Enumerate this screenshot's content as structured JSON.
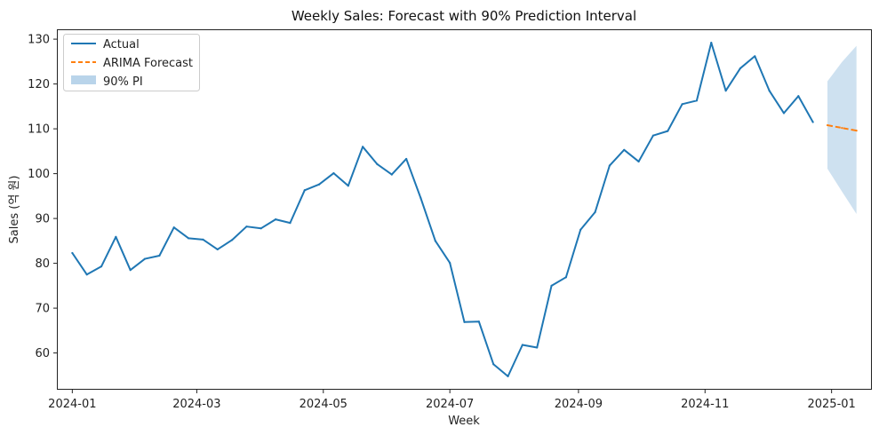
{
  "chart_data": {
    "type": "line",
    "title": "Weekly Sales: Forecast with 90% Prediction Interval",
    "xlabel": "Week",
    "ylabel": "Sales (억 원)",
    "x_range": [
      "2023-12-25",
      "2025-01-20"
    ],
    "ylim": [
      52,
      132
    ],
    "x_ticks": [
      "2024-01",
      "2024-03",
      "2024-05",
      "2024-07",
      "2024-09",
      "2024-11",
      "2025-01"
    ],
    "x_tick_dates": [
      "2024-01-01",
      "2024-03-01",
      "2024-05-01",
      "2024-07-01",
      "2024-09-01",
      "2024-11-01",
      "2025-01-01"
    ],
    "y_ticks": [
      60,
      70,
      80,
      90,
      100,
      110,
      120,
      130
    ],
    "grid": false,
    "legend_position": "top-left",
    "legend": [
      {
        "label": "Actual",
        "style": "line",
        "color": "#1f77b4"
      },
      {
        "label": "ARIMA Forecast",
        "style": "dashed",
        "color": "#ff7f0e"
      },
      {
        "label": "90% PI",
        "style": "band",
        "color": "#b9d4ea"
      }
    ],
    "series": [
      {
        "name": "Actual",
        "color": "#1f77b4",
        "x": [
          "2024-01-01",
          "2024-01-08",
          "2024-01-15",
          "2024-01-22",
          "2024-01-29",
          "2024-02-05",
          "2024-02-12",
          "2024-02-19",
          "2024-02-26",
          "2024-03-04",
          "2024-03-11",
          "2024-03-18",
          "2024-03-25",
          "2024-04-01",
          "2024-04-08",
          "2024-04-15",
          "2024-04-22",
          "2024-04-29",
          "2024-05-06",
          "2024-05-13",
          "2024-05-20",
          "2024-05-27",
          "2024-06-03",
          "2024-06-10",
          "2024-06-17",
          "2024-06-24",
          "2024-07-01",
          "2024-07-08",
          "2024-07-15",
          "2024-07-22",
          "2024-07-29",
          "2024-08-05",
          "2024-08-12",
          "2024-08-19",
          "2024-08-26",
          "2024-09-02",
          "2024-09-09",
          "2024-09-16",
          "2024-09-23",
          "2024-09-30",
          "2024-10-07",
          "2024-10-14",
          "2024-10-21",
          "2024-10-28",
          "2024-11-04",
          "2024-11-11",
          "2024-11-18",
          "2024-11-25",
          "2024-12-02",
          "2024-12-09",
          "2024-12-16",
          "2024-12-23"
        ],
        "values": [
          82.3,
          77.5,
          79.3,
          85.9,
          78.5,
          81.0,
          81.7,
          88.0,
          85.6,
          85.3,
          83.1,
          85.2,
          88.2,
          87.8,
          89.8,
          89.0,
          96.3,
          97.6,
          100.1,
          97.3,
          106.0,
          102.1,
          99.8,
          103.3,
          94.5,
          85.0,
          80.1,
          66.9,
          67.0,
          57.5,
          54.8,
          61.8,
          61.2,
          75.0,
          76.9,
          87.5,
          91.4,
          101.8,
          105.3,
          102.7,
          108.5,
          109.5,
          115.5,
          116.3,
          129.2,
          118.5,
          123.5,
          126.2,
          118.5,
          113.5,
          117.3,
          111.5
        ]
      },
      {
        "name": "ARIMA Forecast",
        "color": "#ff7f0e",
        "x": [
          "2024-12-30",
          "2025-01-06",
          "2025-01-13"
        ],
        "values": [
          110.8,
          110.2,
          109.6
        ]
      },
      {
        "name": "90% PI",
        "color": "#b9d4ea",
        "x": [
          "2024-12-30",
          "2025-01-06",
          "2025-01-13"
        ],
        "lower": [
          101.1,
          96.0,
          91.0
        ],
        "upper": [
          120.6,
          124.9,
          128.5
        ]
      }
    ]
  }
}
